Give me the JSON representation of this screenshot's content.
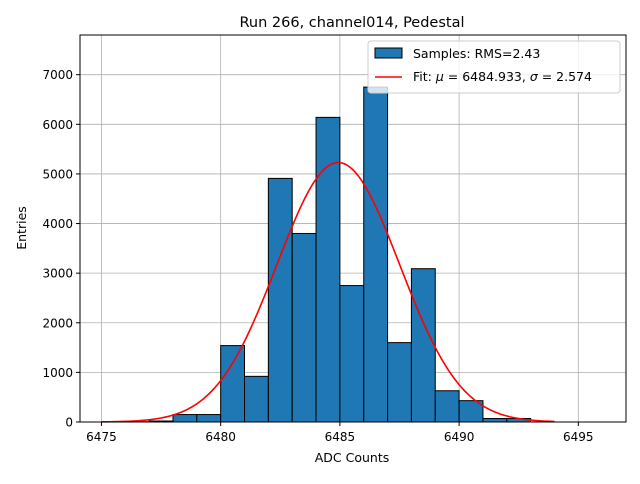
{
  "chart_data": {
    "type": "bar",
    "title": "Run 266, channel014, Pedestal",
    "xlabel": "ADC Counts",
    "ylabel": "Entries",
    "xlim": [
      6474.1,
      6497.0
    ],
    "ylim": [
      0,
      7800
    ],
    "xticks": [
      6475,
      6480,
      6485,
      6490,
      6495
    ],
    "yticks": [
      0,
      1000,
      2000,
      3000,
      4000,
      5000,
      6000,
      7000
    ],
    "grid": true,
    "bin_edges": [
      6475,
      6476,
      6477,
      6478,
      6479,
      6480,
      6481,
      6482,
      6483,
      6484,
      6485,
      6486,
      6487,
      6488,
      6489,
      6490,
      6491,
      6492,
      6493,
      6494
    ],
    "counts": [
      0,
      5,
      20,
      150,
      150,
      1540,
      920,
      4910,
      3800,
      6140,
      2750,
      6750,
      1600,
      3090,
      630,
      430,
      70,
      70,
      0
    ],
    "fit": {
      "mu": 6484.933,
      "sigma": 2.574,
      "amplitude": 5230,
      "x_range": [
        6475,
        6494
      ]
    },
    "colors": {
      "bar": "#1f77b4",
      "fit": "#ff0000"
    },
    "legend": {
      "position": "top-right",
      "entries": [
        {
          "label": "Samples: RMS=2.43",
          "kind": "patch"
        },
        {
          "label_prefix": "Fit: ",
          "mu_symbol": "μ",
          "mu_text": " = 6484.933, ",
          "sigma_symbol": "σ",
          "sigma_text": " = 2.574",
          "kind": "line"
        }
      ]
    }
  }
}
